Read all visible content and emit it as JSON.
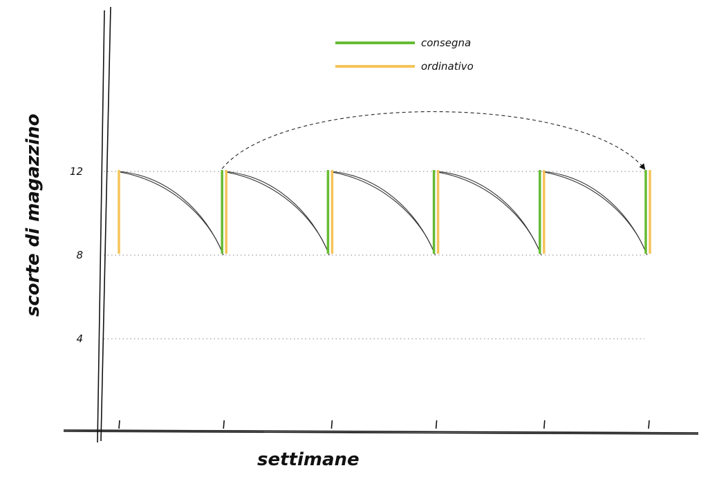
{
  "chart_data": {
    "type": "line",
    "xlabel": "settimane",
    "ylabel": "scorte di magazzino",
    "yticks": [
      {
        "value": 12,
        "label": "12"
      },
      {
        "value": 8,
        "label": "8"
      },
      {
        "value": 4,
        "label": "4"
      }
    ],
    "ylim": [
      0,
      16
    ],
    "xlim": [
      0,
      5.3
    ],
    "x_ticks": [
      0,
      1,
      2,
      3,
      4,
      5
    ],
    "grid": true,
    "legend": {
      "position": "top-center",
      "entries": [
        {
          "label": "consegna",
          "color": "#66bb33"
        },
        {
          "label": "ordinativo",
          "color": "#f5c35a"
        }
      ]
    },
    "series": [
      {
        "name": "consegna",
        "color": "#66bb33",
        "bars": [
          {
            "x": 1,
            "from": 8,
            "to": 12
          },
          {
            "x": 2,
            "from": 8,
            "to": 12
          },
          {
            "x": 3,
            "from": 8,
            "to": 12
          },
          {
            "x": 4,
            "from": 8,
            "to": 12
          },
          {
            "x": 5,
            "from": 8,
            "to": 12
          }
        ]
      },
      {
        "name": "ordinativo",
        "color": "#f5c35a",
        "bars": [
          {
            "x": 0,
            "from": 8,
            "to": 12
          },
          {
            "x": 1,
            "from": 8,
            "to": 12
          },
          {
            "x": 2,
            "from": 8,
            "to": 12
          },
          {
            "x": 3,
            "from": 8,
            "to": 12
          },
          {
            "x": 4,
            "from": 8,
            "to": 12
          },
          {
            "x": 5,
            "from": 8,
            "to": 12
          }
        ]
      }
    ],
    "depletion_cycles": [
      {
        "start_x": 0,
        "end_x": 1,
        "from": 12,
        "to": 8
      },
      {
        "start_x": 1,
        "end_x": 2,
        "from": 12,
        "to": 8
      },
      {
        "start_x": 2,
        "end_x": 3,
        "from": 12,
        "to": 8
      },
      {
        "start_x": 3,
        "end_x": 4,
        "from": 12,
        "to": 8
      },
      {
        "start_x": 4,
        "end_x": 5,
        "from": 12,
        "to": 8
      }
    ],
    "annotations": [
      {
        "type": "dashed-arrow",
        "from_x": 1,
        "to_x": 5,
        "y": 12
      }
    ]
  }
}
